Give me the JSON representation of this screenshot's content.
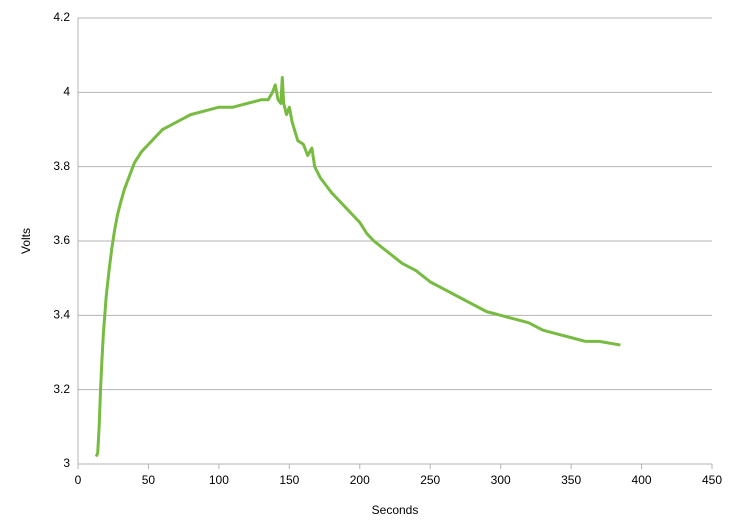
{
  "chart_data": {
    "type": "line",
    "x_label": "Seconds",
    "y_label": "Volts",
    "x": [
      13,
      14,
      15,
      16,
      17,
      18,
      19,
      20,
      22,
      24,
      26,
      28,
      30,
      33,
      36,
      40,
      45,
      50,
      55,
      60,
      65,
      70,
      75,
      80,
      90,
      100,
      110,
      120,
      130,
      135,
      138,
      140,
      142,
      144,
      145,
      146,
      148,
      150,
      152,
      156,
      160,
      163,
      166,
      168,
      172,
      176,
      180,
      185,
      190,
      195,
      200,
      205,
      210,
      220,
      230,
      240,
      250,
      260,
      270,
      280,
      290,
      300,
      310,
      320,
      330,
      340,
      350,
      360,
      370,
      385
    ],
    "series": [
      {
        "color": "#77bc41",
        "values": [
          3.02,
          3.03,
          3.1,
          3.2,
          3.28,
          3.35,
          3.4,
          3.45,
          3.52,
          3.58,
          3.63,
          3.67,
          3.7,
          3.74,
          3.77,
          3.81,
          3.84,
          3.86,
          3.88,
          3.9,
          3.91,
          3.92,
          3.93,
          3.94,
          3.95,
          3.96,
          3.96,
          3.97,
          3.98,
          3.98,
          4.0,
          4.02,
          3.98,
          3.97,
          4.04,
          3.97,
          3.94,
          3.96,
          3.92,
          3.87,
          3.86,
          3.83,
          3.85,
          3.8,
          3.77,
          3.75,
          3.73,
          3.71,
          3.69,
          3.67,
          3.65,
          3.62,
          3.6,
          3.57,
          3.54,
          3.52,
          3.49,
          3.47,
          3.45,
          3.43,
          3.41,
          3.4,
          3.39,
          3.38,
          3.36,
          3.35,
          3.34,
          3.33,
          3.33,
          3.32
        ]
      }
    ],
    "xlim": [
      0,
      450
    ],
    "xticks": [
      0,
      50,
      100,
      150,
      200,
      250,
      300,
      350,
      400,
      450
    ],
    "ylim": [
      3,
      4.2
    ],
    "yticks": [
      3,
      3.2,
      3.4,
      3.6,
      3.8,
      4,
      4.2
    ],
    "grid": true
  }
}
